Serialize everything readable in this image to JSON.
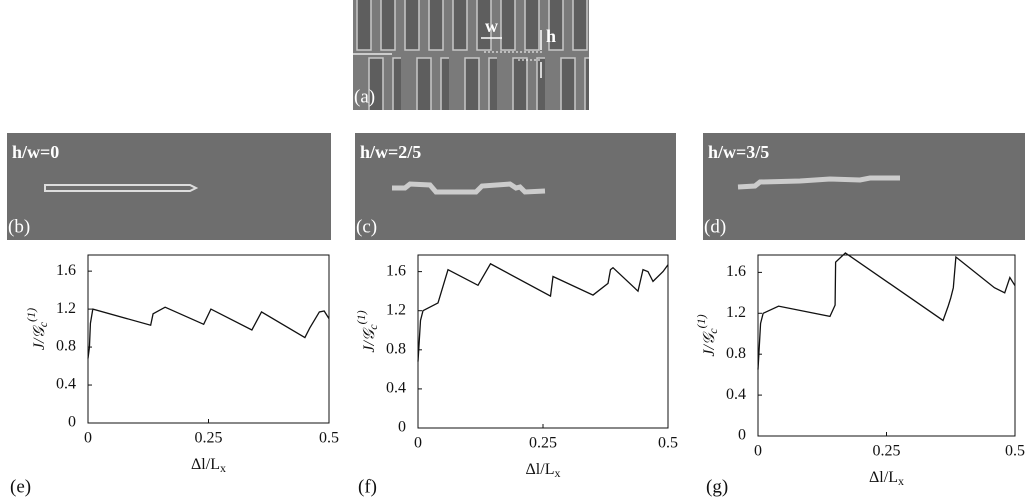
{
  "panels": {
    "a": {
      "label": "(a)",
      "w": "w",
      "h": "h"
    },
    "b": {
      "label": "(b)",
      "title": "h/w=0"
    },
    "c": {
      "label": "(c)",
      "title": "h/w=2/5"
    },
    "d": {
      "label": "(d)",
      "title": "h/w=3/5"
    }
  },
  "chart_data": [
    {
      "type": "line",
      "panel": "(e)",
      "xlabel": [
        "Δl/L",
        "x"
      ],
      "ylabel": [
        "J/𝒢",
        "c",
        "(1)"
      ],
      "xlim": [
        0,
        0.5
      ],
      "ylim": [
        0,
        1.77
      ],
      "xticks": [
        0,
        0.25,
        0.5
      ],
      "yticks": [
        0,
        0.4,
        0.8,
        1.2,
        1.6
      ],
      "color": "#111",
      "x": [
        0,
        0.003,
        0.005,
        0.01,
        0.13,
        0.135,
        0.16,
        0.24,
        0.255,
        0.34,
        0.36,
        0.45,
        0.46,
        0.48,
        0.49,
        0.5
      ],
      "values": [
        0.68,
        0.8,
        1.05,
        1.2,
        1.03,
        1.15,
        1.22,
        1.04,
        1.2,
        0.98,
        1.17,
        0.9,
        1.0,
        1.17,
        1.18,
        1.1
      ]
    },
    {
      "type": "line",
      "panel": "(f)",
      "xlabel": [
        "Δl/L",
        "x"
      ],
      "ylabel": [
        "J/𝒢",
        "c",
        "(1)"
      ],
      "xlim": [
        0,
        0.5
      ],
      "ylim": [
        0,
        1.77
      ],
      "xticks": [
        0,
        0.25,
        0.5
      ],
      "yticks": [
        0,
        0.4,
        0.8,
        1.2,
        1.6
      ],
      "color": "#111",
      "x": [
        0,
        0.005,
        0.01,
        0.04,
        0.06,
        0.12,
        0.145,
        0.265,
        0.27,
        0.35,
        0.38,
        0.385,
        0.39,
        0.44,
        0.45,
        0.46,
        0.47,
        0.49,
        0.5
      ],
      "values": [
        0.68,
        1.1,
        1.2,
        1.28,
        1.62,
        1.46,
        1.68,
        1.35,
        1.55,
        1.36,
        1.48,
        1.62,
        1.64,
        1.4,
        1.62,
        1.6,
        1.5,
        1.6,
        1.67
      ]
    },
    {
      "type": "line",
      "panel": "(g)",
      "xlabel": [
        "Δl/L",
        "x"
      ],
      "ylabel": [
        "J/𝒢",
        "c",
        "(1)"
      ],
      "xlim": [
        0,
        0.5
      ],
      "ylim": [
        0,
        1.77
      ],
      "xticks": [
        0,
        0.25,
        0.5
      ],
      "yticks": [
        0,
        0.4,
        0.8,
        1.2,
        1.6
      ],
      "color": "#111",
      "x": [
        0,
        0.005,
        0.01,
        0.04,
        0.14,
        0.15,
        0.151,
        0.17,
        0.36,
        0.37,
        0.375,
        0.38,
        0.385,
        0.46,
        0.48,
        0.49,
        0.5
      ],
      "values": [
        0.65,
        1.1,
        1.2,
        1.27,
        1.17,
        1.28,
        1.7,
        1.79,
        1.13,
        1.27,
        1.35,
        1.45,
        1.75,
        1.45,
        1.4,
        1.55,
        1.47
      ]
    }
  ]
}
